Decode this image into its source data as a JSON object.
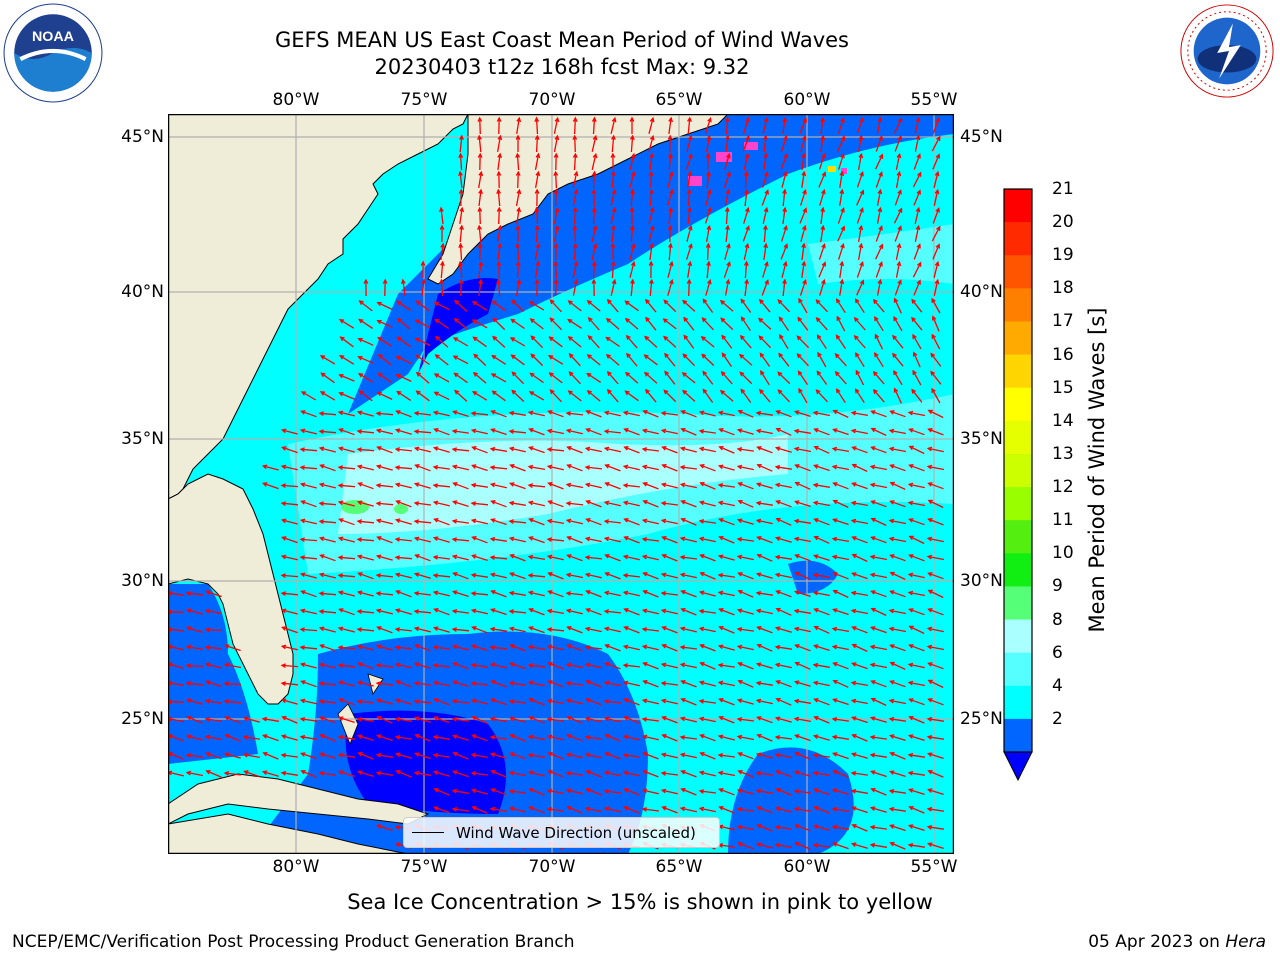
{
  "header": {
    "title_line1": "GEFS MEAN US East Coast Mean Period of Wind Waves",
    "title_line2": "20230403 t12z 168h fcst   Max: 9.32"
  },
  "logos": {
    "left": {
      "text": "NOAA",
      "icon": "noaa-logo-icon"
    },
    "right": {
      "text": "NATIONAL WEATHER SERVICE",
      "icon": "nws-logo-icon"
    }
  },
  "map": {
    "longitude_labels": [
      "80°W",
      "75°W",
      "70°W",
      "65°W",
      "60°W",
      "55°W"
    ],
    "latitude_labels": [
      "45°N",
      "40°N",
      "35°N",
      "30°N",
      "25°N"
    ],
    "land_color": "#efedd8",
    "grid_color": "#b0b0b0",
    "vector_color": "#ff0000"
  },
  "legend": {
    "label": "Wind Wave Direction (unscaled)"
  },
  "colorbar": {
    "label": "Mean Period of Wind Waves [s]",
    "ticks": [
      "21",
      "20",
      "19",
      "18",
      "17",
      "16",
      "15",
      "14",
      "13",
      "12",
      "11",
      "10",
      "9",
      "8",
      "6",
      "4",
      "2"
    ],
    "colors_top_to_bottom": [
      "#ff0000",
      "#ff2a00",
      "#ff5500",
      "#ff8000",
      "#ffaa00",
      "#ffd500",
      "#ffff00",
      "#e6ff00",
      "#ccff00",
      "#99ff00",
      "#55ee11",
      "#11ee11",
      "#55ff77",
      "#aaffff",
      "#55ffff",
      "#00ffff",
      "#0066ff"
    ],
    "extend_color": "#0000ff"
  },
  "caption": "Sea Ice Concentration > 15% is shown in pink to yellow",
  "footer": {
    "left": "NCEP/EMC/Verification Post Processing Product Generation Branch",
    "date": "05 Apr 2023 on ",
    "machine": "Hera"
  }
}
